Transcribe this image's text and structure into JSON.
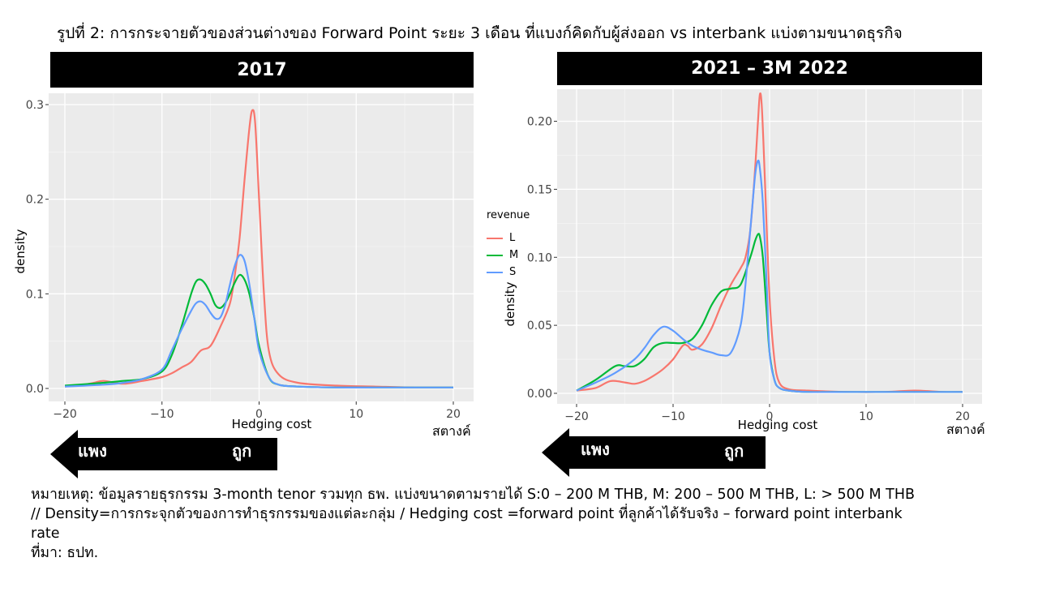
{
  "figure": {
    "title": "รูปที่ 2: การกระจายตัวของส่วนต่างของ Forward Point ระยะ 3 เดือน ที่แบงก์คิดกับผู้ส่งออก vs interbank แบ่งตามขนาดธุรกิจ",
    "unit_label": "สตางค์",
    "arrow_expensive": "แพง",
    "arrow_cheap": "ถูก",
    "notes": [
      "หมายเหตุ: ข้อมูลรายธุรกรรม 3-month tenor รวมทุก ธพ. แบ่งขนาดตามรายได้ S:0 – 200 M THB, M: 200 – 500 M THB, L: > 500 M THB",
      "// Density=การกระจุกตัวของการทำธุรกรรมของแต่ละกลุ่ม / Hedging cost =forward point ที่ลูกค้าได้รับจริง – forward point interbank",
      "rate",
      "ที่มา: ธปท."
    ]
  },
  "legend": {
    "title": "revenue",
    "items": [
      {
        "name": "L",
        "color": "#F8766D"
      },
      {
        "name": "M",
        "color": "#00BA38"
      },
      {
        "name": "S",
        "color": "#619CFF"
      }
    ]
  },
  "chart_data": [
    {
      "type": "line",
      "title": "2017",
      "xlabel": "Hedging cost",
      "ylabel": "density",
      "xlim": [
        -20,
        20
      ],
      "ylim": [
        0,
        0.3
      ],
      "xticks": [
        -20,
        -10,
        0,
        10,
        20
      ],
      "xtick_labels": [
        "−20",
        "−10",
        "0",
        "10",
        "20"
      ],
      "yticks": [
        0.0,
        0.1,
        0.2,
        0.3
      ],
      "ytick_labels": [
        "0.0",
        "0.1",
        "0.2",
        "0.3"
      ],
      "grid": true,
      "series": [
        {
          "name": "L",
          "color": "#F8766D",
          "x": [
            -20,
            -18,
            -17,
            -16,
            -14,
            -12,
            -10,
            -9,
            -8,
            -7,
            -6,
            -5,
            -4,
            -3,
            -2.5,
            -2,
            -1.5,
            -1,
            -0.7,
            -0.4,
            0,
            0.5,
            1,
            2,
            4,
            8,
            12,
            16,
            20
          ],
          "y": [
            0.002,
            0.004,
            0.006,
            0.008,
            0.005,
            0.008,
            0.012,
            0.016,
            0.022,
            0.028,
            0.04,
            0.045,
            0.065,
            0.09,
            0.12,
            0.16,
            0.22,
            0.275,
            0.294,
            0.28,
            0.2,
            0.1,
            0.04,
            0.015,
            0.006,
            0.003,
            0.002,
            0.001,
            0.001
          ]
        },
        {
          "name": "M",
          "color": "#00BA38",
          "x": [
            -20,
            -16,
            -14,
            -12,
            -10,
            -9,
            -8,
            -7,
            -6.5,
            -6,
            -5.5,
            -5,
            -4.5,
            -4,
            -3.5,
            -3,
            -2.5,
            -2,
            -1.5,
            -1,
            -0.5,
            0,
            1,
            2,
            4,
            8,
            12,
            16,
            20
          ],
          "y": [
            0.003,
            0.006,
            0.008,
            0.01,
            0.018,
            0.035,
            0.065,
            0.1,
            0.113,
            0.115,
            0.11,
            0.1,
            0.088,
            0.085,
            0.09,
            0.1,
            0.112,
            0.12,
            0.115,
            0.1,
            0.075,
            0.045,
            0.012,
            0.004,
            0.002,
            0.001,
            0.001,
            0.001,
            0.001
          ]
        },
        {
          "name": "S",
          "color": "#619CFF",
          "x": [
            -20,
            -16,
            -14,
            -12,
            -10,
            -9,
            -8,
            -7,
            -6.5,
            -6,
            -5.5,
            -5,
            -4.5,
            -4,
            -3.5,
            -3,
            -2.5,
            -2,
            -1.5,
            -1,
            -0.5,
            0,
            1,
            2,
            4,
            8,
            12,
            16,
            20
          ],
          "y": [
            0.002,
            0.004,
            0.006,
            0.01,
            0.02,
            0.04,
            0.062,
            0.082,
            0.09,
            0.092,
            0.088,
            0.08,
            0.074,
            0.075,
            0.088,
            0.11,
            0.13,
            0.141,
            0.135,
            0.11,
            0.075,
            0.04,
            0.012,
            0.004,
            0.002,
            0.001,
            0.001,
            0.001,
            0.001
          ]
        }
      ]
    },
    {
      "type": "line",
      "title": "2021 – 3M 2022",
      "xlabel": "Hedging cost",
      "ylabel": "density",
      "xlim": [
        -20,
        20
      ],
      "ylim": [
        0,
        0.22
      ],
      "xticks": [
        -20,
        -10,
        0,
        10,
        20
      ],
      "xtick_labels": [
        "−20",
        "−10",
        "0",
        "10",
        "20"
      ],
      "yticks": [
        0.0,
        0.05,
        0.1,
        0.15,
        0.2
      ],
      "ytick_labels": [
        "0.00",
        "0.05",
        "0.10",
        "0.15",
        "0.20"
      ],
      "grid": true,
      "series": [
        {
          "name": "L",
          "color": "#F8766D",
          "x": [
            -20,
            -18,
            -16.5,
            -15,
            -14,
            -13,
            -12,
            -11,
            -10,
            -9,
            -8.5,
            -8,
            -7,
            -6,
            -5,
            -4,
            -3,
            -2.5,
            -2,
            -1.5,
            -1.2,
            -1,
            -0.8,
            -0.5,
            0,
            0.5,
            1,
            2,
            4,
            8,
            12,
            15,
            18,
            20
          ],
          "y": [
            0.002,
            0.004,
            0.009,
            0.008,
            0.007,
            0.009,
            0.013,
            0.018,
            0.025,
            0.035,
            0.035,
            0.032,
            0.036,
            0.048,
            0.065,
            0.08,
            0.092,
            0.1,
            0.12,
            0.165,
            0.2,
            0.22,
            0.21,
            0.16,
            0.07,
            0.025,
            0.008,
            0.003,
            0.002,
            0.001,
            0.001,
            0.002,
            0.001,
            0.001
          ]
        },
        {
          "name": "M",
          "color": "#00BA38",
          "x": [
            -20,
            -18,
            -16,
            -15,
            -14,
            -13,
            -12,
            -11,
            -10,
            -9,
            -8,
            -7,
            -6,
            -5,
            -4,
            -3,
            -2,
            -1.5,
            -1.2,
            -1,
            -0.7,
            -0.3,
            0,
            0.5,
            1,
            2,
            4,
            8,
            12,
            16,
            20
          ],
          "y": [
            0.002,
            0.01,
            0.02,
            0.02,
            0.02,
            0.025,
            0.034,
            0.037,
            0.037,
            0.037,
            0.04,
            0.05,
            0.065,
            0.075,
            0.077,
            0.08,
            0.1,
            0.112,
            0.117,
            0.115,
            0.1,
            0.06,
            0.03,
            0.01,
            0.004,
            0.002,
            0.001,
            0.001,
            0.001,
            0.001,
            0.001
          ]
        },
        {
          "name": "S",
          "color": "#619CFF",
          "x": [
            -20,
            -18,
            -16,
            -14,
            -13,
            -12,
            -11,
            -10,
            -9,
            -8,
            -7,
            -6,
            -5,
            -4,
            -3,
            -2.5,
            -2,
            -1.5,
            -1.2,
            -1,
            -0.7,
            -0.3,
            0,
            0.5,
            1,
            2,
            4,
            8,
            12,
            16,
            20
          ],
          "y": [
            0.002,
            0.008,
            0.015,
            0.025,
            0.033,
            0.043,
            0.049,
            0.046,
            0.04,
            0.035,
            0.032,
            0.03,
            0.028,
            0.03,
            0.05,
            0.08,
            0.12,
            0.16,
            0.171,
            0.165,
            0.14,
            0.08,
            0.03,
            0.01,
            0.004,
            0.002,
            0.001,
            0.001,
            0.001,
            0.001,
            0.001
          ]
        }
      ]
    }
  ]
}
